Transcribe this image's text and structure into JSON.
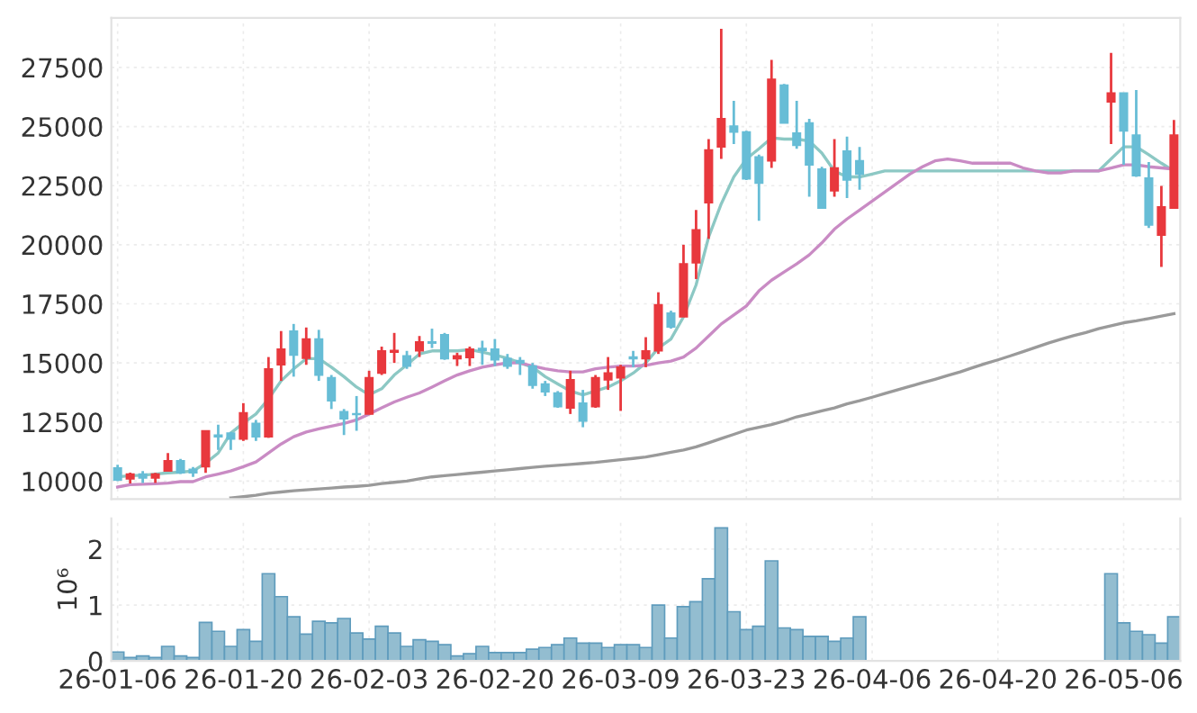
{
  "chart_data": [
    {
      "type": "candlestick",
      "tick_labels": "y",
      "grid": true,
      "categories": [
        null,
        null,
        null,
        null,
        null,
        null,
        null,
        null,
        null,
        null,
        null,
        null,
        null,
        null,
        null,
        null,
        null,
        null,
        null,
        null,
        null,
        null,
        null,
        null,
        null,
        null,
        null,
        null,
        null,
        null,
        null,
        null,
        null,
        null,
        null,
        null,
        null,
        null,
        null,
        null,
        null,
        null,
        null,
        null,
        null,
        null,
        null,
        null,
        null,
        null,
        null,
        null,
        null,
        null,
        null,
        null,
        null,
        null,
        null,
        null,
        null,
        null,
        null,
        null,
        null,
        null,
        null,
        null,
        null,
        null,
        null,
        null,
        null,
        null,
        null,
        null,
        null,
        null,
        null,
        null,
        null,
        null,
        null,
        null,
        null
      ],
      "ylim": [
        9240,
        29600
      ],
      "yticks": [
        10000,
        12500,
        15000,
        17500,
        20000,
        22500,
        25000,
        27500
      ],
      "ohlc": [
        [
          10560,
          10690,
          10000,
          10050
        ],
        [
          10100,
          10355,
          9900,
          10300
        ],
        [
          10300,
          10430,
          9920,
          10130
        ],
        [
          10130,
          10350,
          9920,
          10300
        ],
        [
          10430,
          11190,
          10430,
          10860
        ],
        [
          10860,
          10940,
          10300,
          10350
        ],
        [
          10500,
          10600,
          10180,
          10350
        ],
        [
          10610,
          12130,
          10350,
          12130
        ],
        [
          11950,
          12390,
          11320,
          11880
        ],
        [
          12030,
          12080,
          11320,
          11780
        ],
        [
          11780,
          13300,
          11700,
          12890
        ],
        [
          12440,
          12590,
          11700,
          11880
        ],
        [
          11880,
          15250,
          11830,
          14750
        ],
        [
          14920,
          16350,
          14240,
          15580
        ],
        [
          16350,
          16650,
          14420,
          15330
        ],
        [
          15200,
          16500,
          14920,
          16010
        ],
        [
          16010,
          16400,
          14240,
          14490
        ],
        [
          14370,
          14490,
          13050,
          13400
        ],
        [
          12940,
          13050,
          11950,
          12640
        ],
        [
          12850,
          13600,
          12130,
          12820
        ],
        [
          12840,
          14670,
          12840,
          14370
        ],
        [
          14570,
          15690,
          14490,
          15510
        ],
        [
          15460,
          16270,
          15000,
          15530
        ],
        [
          15300,
          15510,
          14750,
          14870
        ],
        [
          15510,
          16140,
          15250,
          15890
        ],
        [
          15890,
          16450,
          15630,
          15840
        ],
        [
          16190,
          16270,
          15130,
          15180
        ],
        [
          15180,
          15430,
          14870,
          15300
        ],
        [
          15230,
          15690,
          14870,
          15580
        ],
        [
          15610,
          15940,
          14920,
          15530
        ],
        [
          15580,
          16010,
          14870,
          15130
        ],
        [
          15180,
          15380,
          14750,
          14870
        ],
        [
          15100,
          15250,
          14490,
          15000
        ],
        [
          14870,
          15000,
          13910,
          14060
        ],
        [
          14110,
          14240,
          13600,
          13780
        ],
        [
          13730,
          13810,
          13100,
          13150
        ],
        [
          13100,
          14670,
          12840,
          14290
        ],
        [
          13300,
          13860,
          12280,
          12540
        ],
        [
          13150,
          14490,
          13100,
          14370
        ],
        [
          14290,
          15250,
          13860,
          14570
        ],
        [
          14370,
          14920,
          12970,
          14820
        ],
        [
          15250,
          15510,
          14820,
          15180
        ],
        [
          15180,
          16090,
          14820,
          15510
        ],
        [
          15510,
          17990,
          15380,
          17460
        ],
        [
          17110,
          17210,
          16450,
          16520
        ],
        [
          16950,
          20000,
          16950,
          19190
        ],
        [
          19240,
          21470,
          18550,
          20630
        ],
        [
          21780,
          24470,
          20250,
          24010
        ],
        [
          24140,
          29140,
          23630,
          25330
        ],
        [
          25020,
          26090,
          24260,
          24770
        ],
        [
          24770,
          24820,
          22740,
          22790
        ],
        [
          23710,
          23810,
          21010,
          22610
        ],
        [
          23550,
          27820,
          23250,
          27000
        ],
        [
          26750,
          26800,
          25150,
          25150
        ],
        [
          24720,
          26090,
          24060,
          24210
        ],
        [
          25150,
          25330,
          22030,
          23380
        ],
        [
          23200,
          23300,
          21550,
          21550
        ],
        [
          22280,
          24470,
          22030,
          23250
        ],
        [
          23960,
          24570,
          21980,
          22740
        ],
        [
          23550,
          24140,
          22330,
          22990
        ],
        null,
        null,
        null,
        null,
        null,
        null,
        null,
        null,
        null,
        null,
        null,
        null,
        null,
        null,
        null,
        null,
        null,
        null,
        null,
        [
          26040,
          28120,
          24260,
          26420
        ],
        [
          26420,
          26420,
          23380,
          24820
        ],
        [
          24640,
          26550,
          22870,
          22920
        ],
        [
          22820,
          23500,
          20710,
          20840
        ],
        [
          20410,
          22490,
          19060,
          21600
        ],
        [
          21550,
          25280,
          21550,
          24640
        ]
      ],
      "colors": [
        "#67bdd6",
        "#e8383d",
        "#67bdd6",
        "#e8383d",
        "#e8383d",
        "#67bdd6",
        "#67bdd6",
        "#e8383d",
        "#67bdd6",
        "#67bdd6",
        "#e8383d",
        "#67bdd6",
        "#e8383d",
        "#e8383d",
        "#67bdd6",
        "#e8383d",
        "#67bdd6",
        "#67bdd6",
        "#67bdd6",
        "#67bdd6",
        "#e8383d",
        "#e8383d",
        "#e8383d",
        "#67bdd6",
        "#e8383d",
        "#67bdd6",
        "#67bdd6",
        "#e8383d",
        "#e8383d",
        "#67bdd6",
        "#67bdd6",
        "#67bdd6",
        "#67bdd6",
        "#67bdd6",
        "#67bdd6",
        "#67bdd6",
        "#e8383d",
        "#67bdd6",
        "#e8383d",
        "#e8383d",
        "#e8383d",
        "#67bdd6",
        "#e8383d",
        "#e8383d",
        "#67bdd6",
        "#e8383d",
        "#e8383d",
        "#e8383d",
        "#e8383d",
        "#67bdd6",
        "#67bdd6",
        "#67bdd6",
        "#e8383d",
        "#67bdd6",
        "#67bdd6",
        "#67bdd6",
        "#67bdd6",
        "#e8383d",
        "#67bdd6",
        "#67bdd6",
        null,
        null,
        null,
        null,
        null,
        null,
        null,
        null,
        null,
        null,
        null,
        null,
        null,
        null,
        null,
        null,
        null,
        null,
        null,
        "#e8383d",
        "#67bdd6",
        "#67bdd6",
        "#67bdd6",
        "#e8383d",
        "#e8383d"
      ],
      "series": [
        {
          "type": "line",
          "color": "#8cc8c4",
          "values": [
            10180,
            10230,
            10250,
            10300,
            10350,
            10380,
            10430,
            10760,
            11190,
            12030,
            12460,
            12840,
            13480,
            14240,
            14750,
            15180,
            15180,
            14820,
            14420,
            13980,
            13650,
            13910,
            14490,
            14920,
            15380,
            15510,
            15510,
            15510,
            15560,
            15460,
            15330,
            15200,
            15000,
            14820,
            14420,
            14110,
            13810,
            13650,
            13810,
            13980,
            14240,
            14570,
            15000,
            15630,
            16010,
            16950,
            18300,
            20330,
            21730,
            22870,
            23630,
            24060,
            24520,
            24470,
            24470,
            24390,
            23880,
            23120,
            22870,
            22870,
            22990,
            23120,
            23120,
            23120,
            23120,
            23120,
            23120,
            23120,
            23120,
            23120,
            23120,
            23120,
            23120,
            23120,
            23120,
            23120,
            23120,
            23120,
            23120,
            23630,
            24140,
            24140,
            23810,
            23450,
            23120
          ]
        },
        {
          "type": "line",
          "color": "#c98bc4",
          "values": [
            9750,
            9850,
            9870,
            9890,
            9920,
            9980,
            9980,
            10180,
            10300,
            10430,
            10610,
            10810,
            11190,
            11570,
            11880,
            12080,
            12210,
            12330,
            12440,
            12590,
            12840,
            13100,
            13350,
            13550,
            13730,
            13980,
            14240,
            14490,
            14670,
            14820,
            14920,
            15000,
            15000,
            14870,
            14750,
            14670,
            14620,
            14620,
            14750,
            14820,
            14870,
            14870,
            14900,
            15000,
            15080,
            15250,
            15630,
            16140,
            16650,
            17030,
            17410,
            18050,
            18500,
            18850,
            19190,
            19570,
            20080,
            20660,
            21090,
            21470,
            21850,
            22230,
            22610,
            22990,
            23300,
            23550,
            23630,
            23550,
            23450,
            23450,
            23450,
            23450,
            23250,
            23120,
            23040,
            23040,
            23120,
            23120,
            23120,
            23250,
            23380,
            23380,
            23300,
            23250,
            23200
          ]
        },
        {
          "type": "line",
          "color": "#9a9a9a",
          "values": [
            null,
            null,
            null,
            null,
            null,
            null,
            null,
            null,
            null,
            9290,
            9340,
            9400,
            9490,
            9540,
            9590,
            9630,
            9670,
            9710,
            9750,
            9780,
            9820,
            9900,
            9950,
            10000,
            10100,
            10180,
            10230,
            10280,
            10330,
            10380,
            10430,
            10480,
            10530,
            10580,
            10630,
            10670,
            10710,
            10750,
            10790,
            10850,
            10910,
            10960,
            11020,
            11120,
            11220,
            11320,
            11450,
            11620,
            11800,
            11980,
            12160,
            12280,
            12390,
            12540,
            12720,
            12840,
            12970,
            13100,
            13270,
            13400,
            13550,
            13710,
            13860,
            14010,
            14160,
            14310,
            14470,
            14620,
            14800,
            14970,
            15130,
            15300,
            15480,
            15660,
            15840,
            16000,
            16150,
            16290,
            16450,
            16570,
            16700,
            16780,
            16880,
            16980,
            17080
          ]
        }
      ]
    },
    {
      "type": "bar",
      "grid": true,
      "ylabel": "10⁶",
      "color": "#93bdd0",
      "categories": [
        "26-01-06",
        null,
        null,
        null,
        null,
        null,
        null,
        null,
        null,
        null,
        "26-01-20",
        null,
        null,
        null,
        null,
        null,
        null,
        null,
        null,
        null,
        "26-02-03",
        null,
        null,
        null,
        null,
        null,
        null,
        null,
        null,
        null,
        "26-02-20",
        null,
        null,
        null,
        null,
        null,
        null,
        null,
        null,
        null,
        "26-03-09",
        null,
        null,
        null,
        null,
        null,
        null,
        null,
        null,
        null,
        "26-03-23",
        null,
        null,
        null,
        null,
        null,
        null,
        null,
        null,
        null,
        "26-04-06",
        null,
        null,
        null,
        null,
        null,
        null,
        null,
        null,
        null,
        "26-04-20",
        null,
        null,
        null,
        null,
        null,
        null,
        null,
        null,
        null,
        "26-05-06",
        null,
        null,
        null,
        null
      ],
      "ylim": [
        0,
        2.55
      ],
      "yticks": [
        0,
        1,
        2
      ],
      "values": [
        0.16,
        0.06,
        0.09,
        0.06,
        0.26,
        0.09,
        0.06,
        0.69,
        0.53,
        0.26,
        0.56,
        0.35,
        1.56,
        1.15,
        0.79,
        0.48,
        0.71,
        0.68,
        0.76,
        0.5,
        0.39,
        0.62,
        0.5,
        0.26,
        0.38,
        0.35,
        0.29,
        0.09,
        0.13,
        0.26,
        0.15,
        0.15,
        0.15,
        0.21,
        0.24,
        0.29,
        0.41,
        0.32,
        0.32,
        0.24,
        0.29,
        0.29,
        0.24,
        1.0,
        0.41,
        0.97,
        1.06,
        1.47,
        2.38,
        0.88,
        0.56,
        0.62,
        1.79,
        0.59,
        0.56,
        0.44,
        0.44,
        0.35,
        0.41,
        0.79,
        null,
        null,
        null,
        null,
        null,
        null,
        null,
        null,
        null,
        null,
        null,
        null,
        null,
        null,
        null,
        null,
        null,
        null,
        null,
        1.56,
        0.68,
        0.53,
        0.47,
        0.32,
        0.79
      ]
    }
  ]
}
